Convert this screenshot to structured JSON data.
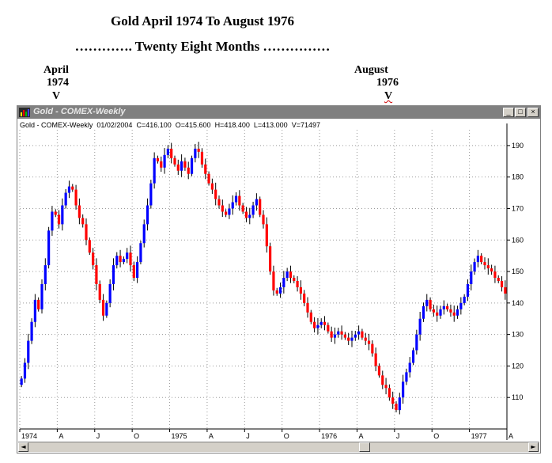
{
  "header": {
    "title": "Gold April 1974 To August 1976",
    "subtitle": "…………. Twenty Eight Months ……………",
    "marker_left": {
      "month": "April",
      "year": "1974",
      "arrow": "V"
    },
    "marker_right": {
      "month": "August",
      "year": "1976",
      "arrow": "V"
    }
  },
  "window": {
    "title": "Gold - COMEX-Weekly",
    "buttons": {
      "minimize": "_",
      "maximize": "□",
      "close": "×"
    },
    "info": {
      "symbol": "Gold - COMEX-Weekly",
      "date": "01/02/2004",
      "close": "C=416.100",
      "open": "O=415.600",
      "high": "H=418.400",
      "low": "L=413.000",
      "volume": "V=71497"
    },
    "scrollbar": {
      "left_arrow": "◄",
      "right_arrow": "►"
    }
  },
  "chart_data": {
    "type": "candlestick",
    "timeframe": "weekly",
    "up_color": "#0000ff",
    "down_color": "#ff0000",
    "wick_color": "#000000",
    "grid": true,
    "ylim": [
      100,
      195
    ],
    "y_ticks": [
      110,
      120,
      130,
      140,
      150,
      160,
      170,
      180,
      190
    ],
    "x_tick_labels": [
      {
        "label": "1974",
        "week": 0
      },
      {
        "label": "A",
        "week": 11
      },
      {
        "label": "J",
        "week": 22
      },
      {
        "label": "O",
        "week": 33
      },
      {
        "label": "1975",
        "week": 44
      },
      {
        "label": "A",
        "week": 55
      },
      {
        "label": "J",
        "week": 66
      },
      {
        "label": "O",
        "week": 77
      },
      {
        "label": "1976",
        "week": 88
      },
      {
        "label": "A",
        "week": 99
      },
      {
        "label": "J",
        "week": 110
      },
      {
        "label": "O",
        "week": 121
      },
      {
        "label": "1977",
        "week": 132
      },
      {
        "label": "A",
        "week": 143
      }
    ],
    "close_series": [
      116,
      121,
      128,
      134,
      141,
      138,
      146,
      152,
      163,
      169,
      168,
      165,
      171,
      175,
      177,
      176,
      171,
      167,
      165,
      160,
      156,
      152,
      146,
      141,
      136,
      140,
      146,
      152,
      155,
      153,
      154,
      156,
      152,
      148,
      153,
      159,
      165,
      171,
      178,
      186,
      185,
      183,
      187,
      189,
      186,
      184,
      182,
      185,
      183,
      181,
      186,
      189,
      188,
      184,
      181,
      178,
      176,
      173,
      171,
      169,
      168,
      170,
      172,
      174,
      171,
      169,
      167,
      168,
      171,
      173,
      168,
      165,
      158,
      150,
      144,
      143,
      145,
      148,
      150,
      148,
      147,
      145,
      143,
      140,
      137,
      134,
      132,
      133,
      134,
      133,
      131,
      129,
      130,
      131,
      130,
      129,
      128,
      129,
      130,
      131,
      129,
      128,
      127,
      124,
      120,
      117,
      114,
      113,
      110,
      108,
      106,
      110,
      115,
      118,
      121,
      125,
      130,
      135,
      139,
      141,
      138,
      137,
      136,
      138,
      139,
      138,
      137,
      136,
      138,
      140,
      142,
      146,
      150,
      153,
      155,
      153,
      152,
      151,
      150,
      148,
      147,
      145,
      143
    ]
  }
}
